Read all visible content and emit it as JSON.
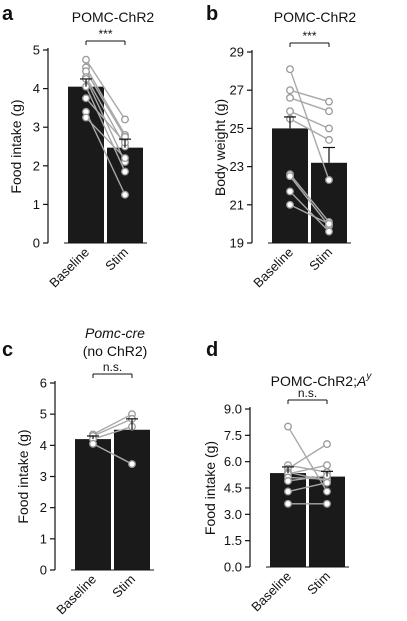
{
  "chart_data": [
    {
      "type": "bar",
      "panel_label": "a",
      "title": "POMC-ChR2",
      "title_italic": "",
      "ylabel": "Food intake (g)",
      "ylim": [
        0,
        5
      ],
      "yticks": [
        "0",
        "1",
        "2",
        "3",
        "4",
        "5"
      ],
      "categories": [
        "Baseline",
        "Stim"
      ],
      "values": [
        4.05,
        2.47
      ],
      "sem": [
        0.2,
        0.22
      ],
      "paired": [
        [
          4.75,
          3.2
        ],
        [
          4.55,
          2.8
        ],
        [
          4.45,
          2.75
        ],
        [
          4.3,
          2.5
        ],
        [
          4.25,
          2.1
        ],
        [
          4.05,
          1.85
        ],
        [
          3.75,
          2.6
        ],
        [
          3.4,
          1.25
        ],
        [
          3.25,
          2.2
        ]
      ],
      "significance": "***"
    },
    {
      "type": "bar",
      "panel_label": "b",
      "title": "POMC-ChR2",
      "title_italic": "",
      "ylabel": "Body weight (g)",
      "ylim": [
        19,
        29
      ],
      "yticks": [
        "19",
        "21",
        "23",
        "25",
        "27",
        "29"
      ],
      "categories": [
        "Baseline",
        "Stim"
      ],
      "values": [
        25.0,
        23.2
      ],
      "sem": [
        0.6,
        0.8
      ],
      "paired": [
        [
          28.1,
          22.3
        ],
        [
          27.0,
          26.4
        ],
        [
          26.6,
          25.9
        ],
        [
          25.9,
          25.0
        ],
        [
          25.5,
          24.4
        ],
        [
          22.6,
          20.1
        ],
        [
          22.5,
          19.9
        ],
        [
          21.7,
          19.6
        ],
        [
          21.0,
          20.0
        ]
      ],
      "significance": "***"
    },
    {
      "type": "bar",
      "panel_label": "c",
      "title": "(no ChR2)",
      "title_italic": "Pomc-cre",
      "ylabel": "Food intake (g)",
      "ylim": [
        0,
        6
      ],
      "yticks": [
        "0",
        "1",
        "2",
        "3",
        "4",
        "5",
        "6"
      ],
      "categories": [
        "Baseline",
        "Stim"
      ],
      "values": [
        4.2,
        4.5
      ],
      "sem": [
        0.1,
        0.35
      ],
      "paired": [
        [
          4.35,
          5.0
        ],
        [
          4.3,
          4.85
        ],
        [
          4.2,
          4.6
        ],
        [
          4.05,
          3.4
        ]
      ],
      "significance": "n.s."
    },
    {
      "type": "bar",
      "panel_label": "d",
      "title": "POMC-ChR2;",
      "title_italic": "A",
      "title_sup": "y",
      "ylabel": "Food intake (g)",
      "ylim": [
        0,
        9
      ],
      "yticks": [
        "0.0",
        "1.5",
        "3.0",
        "4.5",
        "6.0",
        "7.5",
        "9.0"
      ],
      "categories": [
        "Baseline",
        "Stim"
      ],
      "values": [
        5.35,
        5.15
      ],
      "sem": [
        0.35,
        0.3
      ],
      "paired": [
        [
          8.0,
          4.3
        ],
        [
          5.8,
          5.4
        ],
        [
          5.6,
          7.0
        ],
        [
          5.4,
          4.9
        ],
        [
          5.3,
          5.8
        ],
        [
          5.1,
          5.0
        ],
        [
          4.9,
          5.2
        ],
        [
          4.3,
          4.8
        ],
        [
          3.6,
          3.6
        ]
      ],
      "significance": "n.s."
    }
  ]
}
